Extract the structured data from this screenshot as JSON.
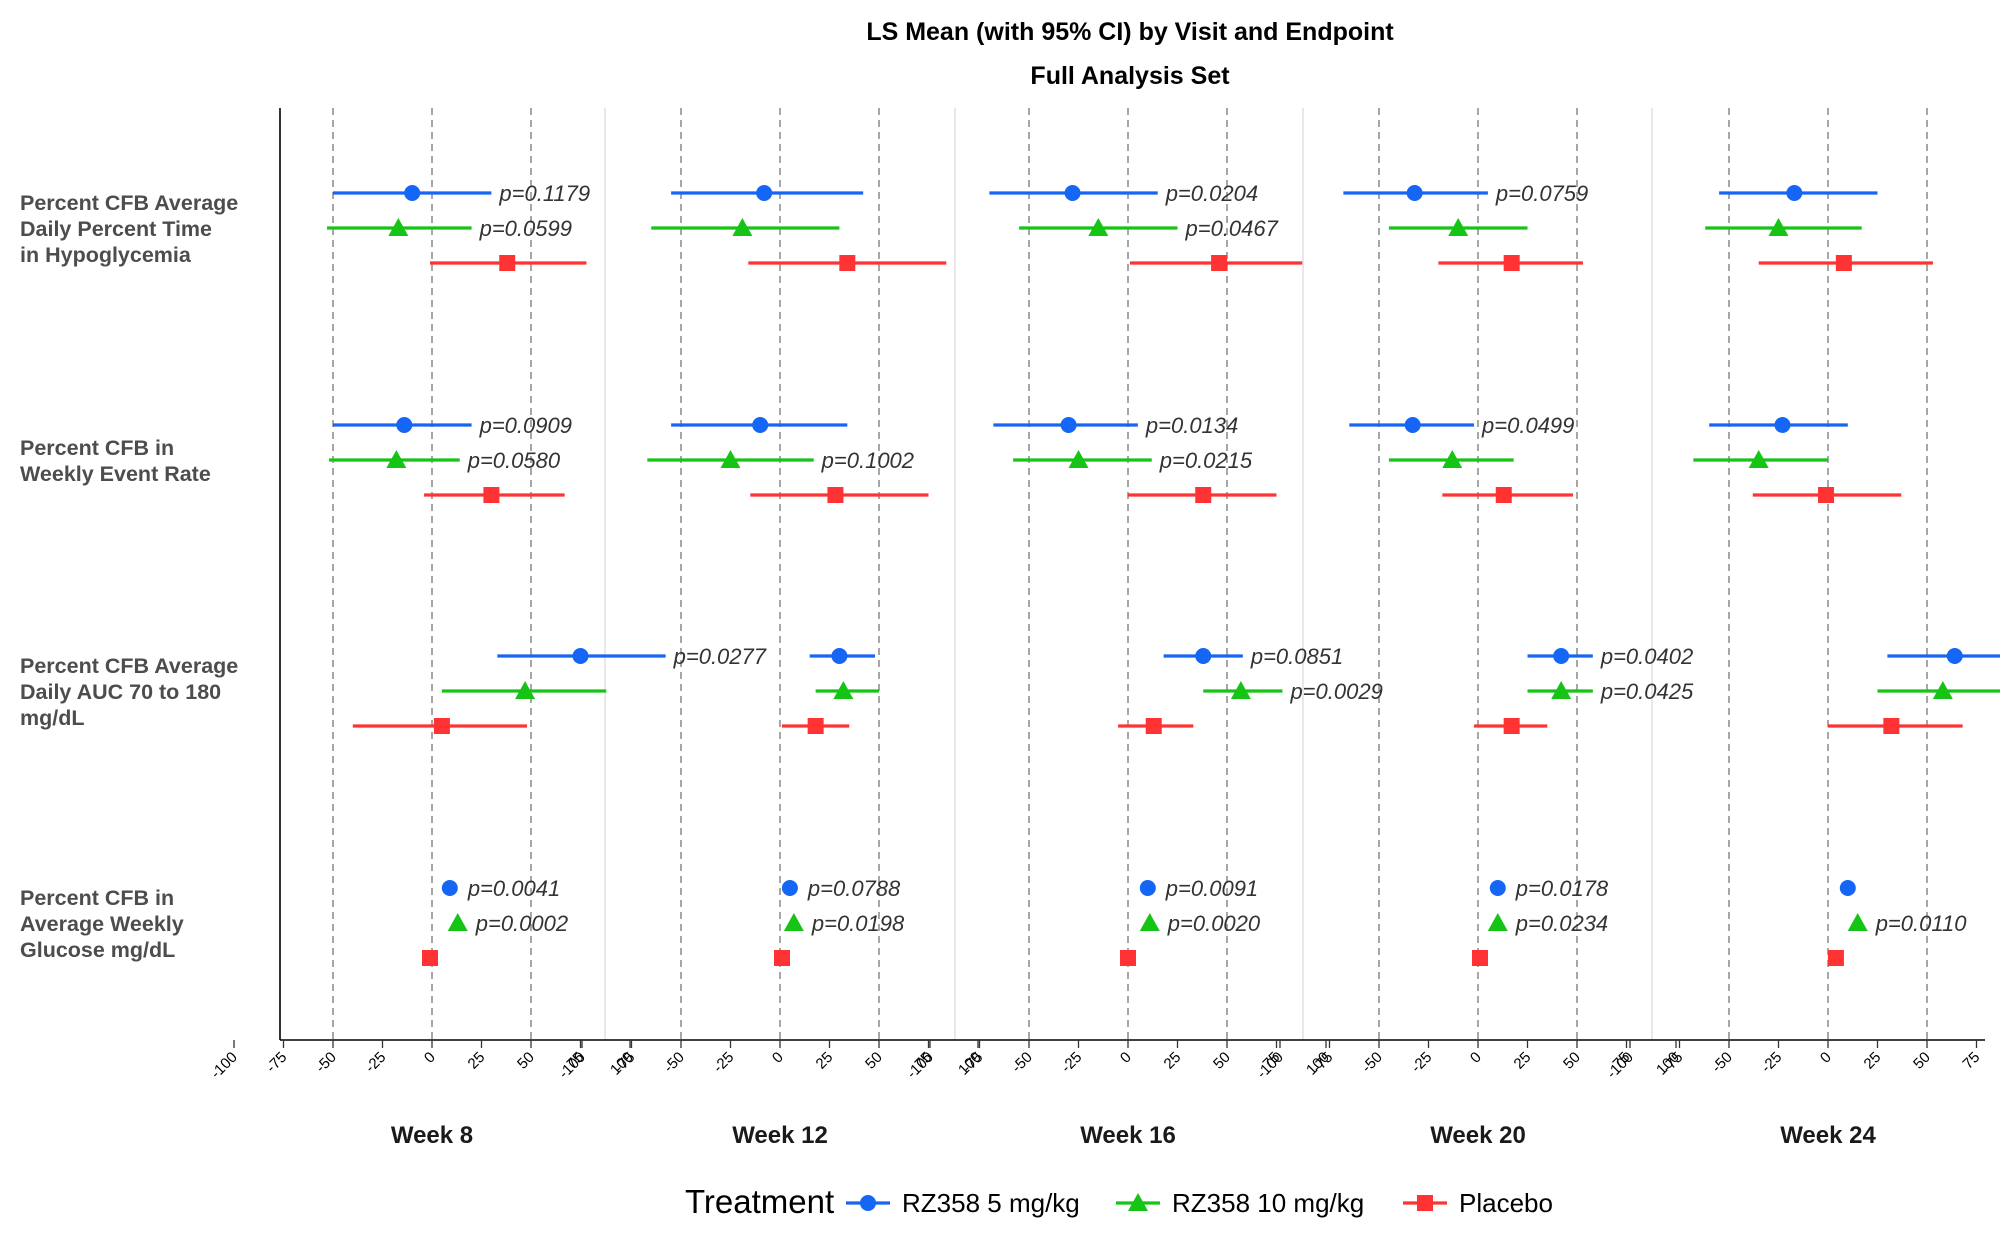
{
  "title": "LS Mean (with 95% CI) by Visit and Endpoint",
  "subtitle": "Full Analysis Set",
  "colors": {
    "RZ358 5 mg/kg": "#1666f5",
    "RZ358 10 mg/kg": "#16c416",
    "Placebo": "#ff3333"
  },
  "legend": {
    "title": "Treatment",
    "placement": "bottom",
    "items": [
      {
        "label": "RZ358 5 mg/kg",
        "shape": "circle"
      },
      {
        "label": "RZ358 10 mg/kg",
        "shape": "triangle"
      },
      {
        "label": "Placebo",
        "shape": "square"
      }
    ]
  },
  "chart_data": {
    "type": "forest",
    "xlim": [
      -100,
      100
    ],
    "x_ticks": [
      -100,
      -75,
      -50,
      -25,
      0,
      25,
      50,
      75,
      100
    ],
    "reference_lines": [
      -50,
      0,
      50
    ],
    "panels": [
      "Week 8",
      "Week 12",
      "Week 16",
      "Week 20",
      "Week 24"
    ],
    "endpoints": [
      "Percent CFB Average Daily Percent Time in Hypoglycemia",
      "Percent CFB in Weekly Event Rate",
      "Percent CFB Average Daily AUC 70 to 180 mg/dL",
      "Percent CFB in Average Weekly Glucose mg/dL"
    ],
    "endpoint_label_lines": [
      [
        "Percent CFB Average",
        "Daily Percent Time",
        "in Hypoglycemia"
      ],
      [
        "Percent CFB in",
        "Weekly Event Rate"
      ],
      [
        "Percent CFB Average",
        "Daily AUC 70 to 180",
        "mg/dL"
      ],
      [
        "Percent CFB in",
        "Average Weekly",
        "Glucose mg/dL"
      ]
    ],
    "treatments": [
      "RZ358 5 mg/kg",
      "RZ358 10 mg/kg",
      "Placebo"
    ],
    "points": [
      {
        "endpoint": 0,
        "panel": 0,
        "treatment": 0,
        "est": -10,
        "lo": -50,
        "hi": 30,
        "p": "p=0.1179"
      },
      {
        "endpoint": 0,
        "panel": 0,
        "treatment": 1,
        "est": -17,
        "lo": -53,
        "hi": 20,
        "p": "p=0.0599"
      },
      {
        "endpoint": 0,
        "panel": 0,
        "treatment": 2,
        "est": 38,
        "lo": -1,
        "hi": 78,
        "p": ""
      },
      {
        "endpoint": 0,
        "panel": 1,
        "treatment": 0,
        "est": -8,
        "lo": -55,
        "hi": 42,
        "p": ""
      },
      {
        "endpoint": 0,
        "panel": 1,
        "treatment": 1,
        "est": -19,
        "lo": -65,
        "hi": 30,
        "p": ""
      },
      {
        "endpoint": 0,
        "panel": 1,
        "treatment": 2,
        "est": 34,
        "lo": -16,
        "hi": 84,
        "p": ""
      },
      {
        "endpoint": 0,
        "panel": 2,
        "treatment": 0,
        "est": -28,
        "lo": -70,
        "hi": 15,
        "p": "p=0.0204"
      },
      {
        "endpoint": 0,
        "panel": 2,
        "treatment": 1,
        "est": -15,
        "lo": -55,
        "hi": 25,
        "p": "p=0.0467"
      },
      {
        "endpoint": 0,
        "panel": 2,
        "treatment": 2,
        "est": 46,
        "lo": 1,
        "hi": 88,
        "p": ""
      },
      {
        "endpoint": 0,
        "panel": 3,
        "treatment": 0,
        "est": -32,
        "lo": -68,
        "hi": 5,
        "p": "p=0.0759"
      },
      {
        "endpoint": 0,
        "panel": 3,
        "treatment": 1,
        "est": -10,
        "lo": -45,
        "hi": 25,
        "p": ""
      },
      {
        "endpoint": 0,
        "panel": 3,
        "treatment": 2,
        "est": 17,
        "lo": -20,
        "hi": 53,
        "p": ""
      },
      {
        "endpoint": 0,
        "panel": 4,
        "treatment": 0,
        "est": -17,
        "lo": -55,
        "hi": 25,
        "p": ""
      },
      {
        "endpoint": 0,
        "panel": 4,
        "treatment": 1,
        "est": -25,
        "lo": -62,
        "hi": 17,
        "p": ""
      },
      {
        "endpoint": 0,
        "panel": 4,
        "treatment": 2,
        "est": 8,
        "lo": -35,
        "hi": 53,
        "p": ""
      },
      {
        "endpoint": 1,
        "panel": 0,
        "treatment": 0,
        "est": -14,
        "lo": -50,
        "hi": 20,
        "p": "p=0.0909"
      },
      {
        "endpoint": 1,
        "panel": 0,
        "treatment": 1,
        "est": -18,
        "lo": -52,
        "hi": 14,
        "p": "p=0.0580"
      },
      {
        "endpoint": 1,
        "panel": 0,
        "treatment": 2,
        "est": 30,
        "lo": -4,
        "hi": 67,
        "p": ""
      },
      {
        "endpoint": 1,
        "panel": 1,
        "treatment": 0,
        "est": -10,
        "lo": -55,
        "hi": 34,
        "p": ""
      },
      {
        "endpoint": 1,
        "panel": 1,
        "treatment": 1,
        "est": -25,
        "lo": -67,
        "hi": 17,
        "p": "p=0.1002"
      },
      {
        "endpoint": 1,
        "panel": 1,
        "treatment": 2,
        "est": 28,
        "lo": -15,
        "hi": 75,
        "p": ""
      },
      {
        "endpoint": 1,
        "panel": 2,
        "treatment": 0,
        "est": -30,
        "lo": -68,
        "hi": 5,
        "p": "p=0.0134"
      },
      {
        "endpoint": 1,
        "panel": 2,
        "treatment": 1,
        "est": -25,
        "lo": -58,
        "hi": 12,
        "p": "p=0.0215"
      },
      {
        "endpoint": 1,
        "panel": 2,
        "treatment": 2,
        "est": 38,
        "lo": 0,
        "hi": 75,
        "p": ""
      },
      {
        "endpoint": 1,
        "panel": 3,
        "treatment": 0,
        "est": -33,
        "lo": -65,
        "hi": -2,
        "p": "p=0.0499"
      },
      {
        "endpoint": 1,
        "panel": 3,
        "treatment": 1,
        "est": -13,
        "lo": -45,
        "hi": 18,
        "p": ""
      },
      {
        "endpoint": 1,
        "panel": 3,
        "treatment": 2,
        "est": 13,
        "lo": -18,
        "hi": 48,
        "p": ""
      },
      {
        "endpoint": 1,
        "panel": 4,
        "treatment": 0,
        "est": -23,
        "lo": -60,
        "hi": 10,
        "p": ""
      },
      {
        "endpoint": 1,
        "panel": 4,
        "treatment": 1,
        "est": -35,
        "lo": -68,
        "hi": 0,
        "p": ""
      },
      {
        "endpoint": 1,
        "panel": 4,
        "treatment": 2,
        "est": -1,
        "lo": -38,
        "hi": 37,
        "p": ""
      },
      {
        "endpoint": 2,
        "panel": 0,
        "treatment": 0,
        "est": 75,
        "lo": 33,
        "hi": 118,
        "p": "p=0.0277"
      },
      {
        "endpoint": 2,
        "panel": 0,
        "treatment": 1,
        "est": 47,
        "lo": 5,
        "hi": 88,
        "p": ""
      },
      {
        "endpoint": 2,
        "panel": 0,
        "treatment": 2,
        "est": 5,
        "lo": -40,
        "hi": 48,
        "p": ""
      },
      {
        "endpoint": 2,
        "panel": 1,
        "treatment": 0,
        "est": 30,
        "lo": 15,
        "hi": 48,
        "p": ""
      },
      {
        "endpoint": 2,
        "panel": 1,
        "treatment": 1,
        "est": 32,
        "lo": 18,
        "hi": 50,
        "p": ""
      },
      {
        "endpoint": 2,
        "panel": 1,
        "treatment": 2,
        "est": 18,
        "lo": 1,
        "hi": 35,
        "p": ""
      },
      {
        "endpoint": 2,
        "panel": 2,
        "treatment": 0,
        "est": 38,
        "lo": 18,
        "hi": 58,
        "p": "p=0.0851"
      },
      {
        "endpoint": 2,
        "panel": 2,
        "treatment": 1,
        "est": 57,
        "lo": 38,
        "hi": 78,
        "p": "p=0.0029"
      },
      {
        "endpoint": 2,
        "panel": 2,
        "treatment": 2,
        "est": 13,
        "lo": -5,
        "hi": 33,
        "p": ""
      },
      {
        "endpoint": 2,
        "panel": 3,
        "treatment": 0,
        "est": 42,
        "lo": 25,
        "hi": 58,
        "p": "p=0.0402"
      },
      {
        "endpoint": 2,
        "panel": 3,
        "treatment": 1,
        "est": 42,
        "lo": 25,
        "hi": 58,
        "p": "p=0.0425"
      },
      {
        "endpoint": 2,
        "panel": 3,
        "treatment": 2,
        "est": 17,
        "lo": -2,
        "hi": 35,
        "p": ""
      },
      {
        "endpoint": 2,
        "panel": 4,
        "treatment": 0,
        "est": 64,
        "lo": 30,
        "hi": 97,
        "p": ""
      },
      {
        "endpoint": 2,
        "panel": 4,
        "treatment": 1,
        "est": 58,
        "lo": 25,
        "hi": 90,
        "p": ""
      },
      {
        "endpoint": 2,
        "panel": 4,
        "treatment": 2,
        "est": 32,
        "lo": 0,
        "hi": 68,
        "p": ""
      },
      {
        "endpoint": 3,
        "panel": 0,
        "treatment": 0,
        "est": 9,
        "lo": 9,
        "hi": 9,
        "p": "p=0.0041"
      },
      {
        "endpoint": 3,
        "panel": 0,
        "treatment": 1,
        "est": 13,
        "lo": 13,
        "hi": 13,
        "p": "p=0.0002"
      },
      {
        "endpoint": 3,
        "panel": 0,
        "treatment": 2,
        "est": -1,
        "lo": -1,
        "hi": -1,
        "p": ""
      },
      {
        "endpoint": 3,
        "panel": 1,
        "treatment": 0,
        "est": 5,
        "lo": 5,
        "hi": 5,
        "p": "p=0.0788"
      },
      {
        "endpoint": 3,
        "panel": 1,
        "treatment": 1,
        "est": 7,
        "lo": 7,
        "hi": 7,
        "p": "p=0.0198"
      },
      {
        "endpoint": 3,
        "panel": 1,
        "treatment": 2,
        "est": 1,
        "lo": 1,
        "hi": 1,
        "p": ""
      },
      {
        "endpoint": 3,
        "panel": 2,
        "treatment": 0,
        "est": 10,
        "lo": 10,
        "hi": 10,
        "p": "p=0.0091"
      },
      {
        "endpoint": 3,
        "panel": 2,
        "treatment": 1,
        "est": 11,
        "lo": 11,
        "hi": 11,
        "p": "p=0.0020"
      },
      {
        "endpoint": 3,
        "panel": 2,
        "treatment": 2,
        "est": 0,
        "lo": 0,
        "hi": 0,
        "p": ""
      },
      {
        "endpoint": 3,
        "panel": 3,
        "treatment": 0,
        "est": 10,
        "lo": 10,
        "hi": 10,
        "p": "p=0.0178"
      },
      {
        "endpoint": 3,
        "panel": 3,
        "treatment": 1,
        "est": 10,
        "lo": 10,
        "hi": 10,
        "p": "p=0.0234"
      },
      {
        "endpoint": 3,
        "panel": 3,
        "treatment": 2,
        "est": 1,
        "lo": 1,
        "hi": 1,
        "p": ""
      },
      {
        "endpoint": 3,
        "panel": 4,
        "treatment": 0,
        "est": 10,
        "lo": 10,
        "hi": 10,
        "p": ""
      },
      {
        "endpoint": 3,
        "panel": 4,
        "treatment": 1,
        "est": 15,
        "lo": 15,
        "hi": 15,
        "p": "p=0.0110"
      },
      {
        "endpoint": 3,
        "panel": 4,
        "treatment": 2,
        "est": 4,
        "lo": 4,
        "hi": 4,
        "p": ""
      }
    ]
  }
}
